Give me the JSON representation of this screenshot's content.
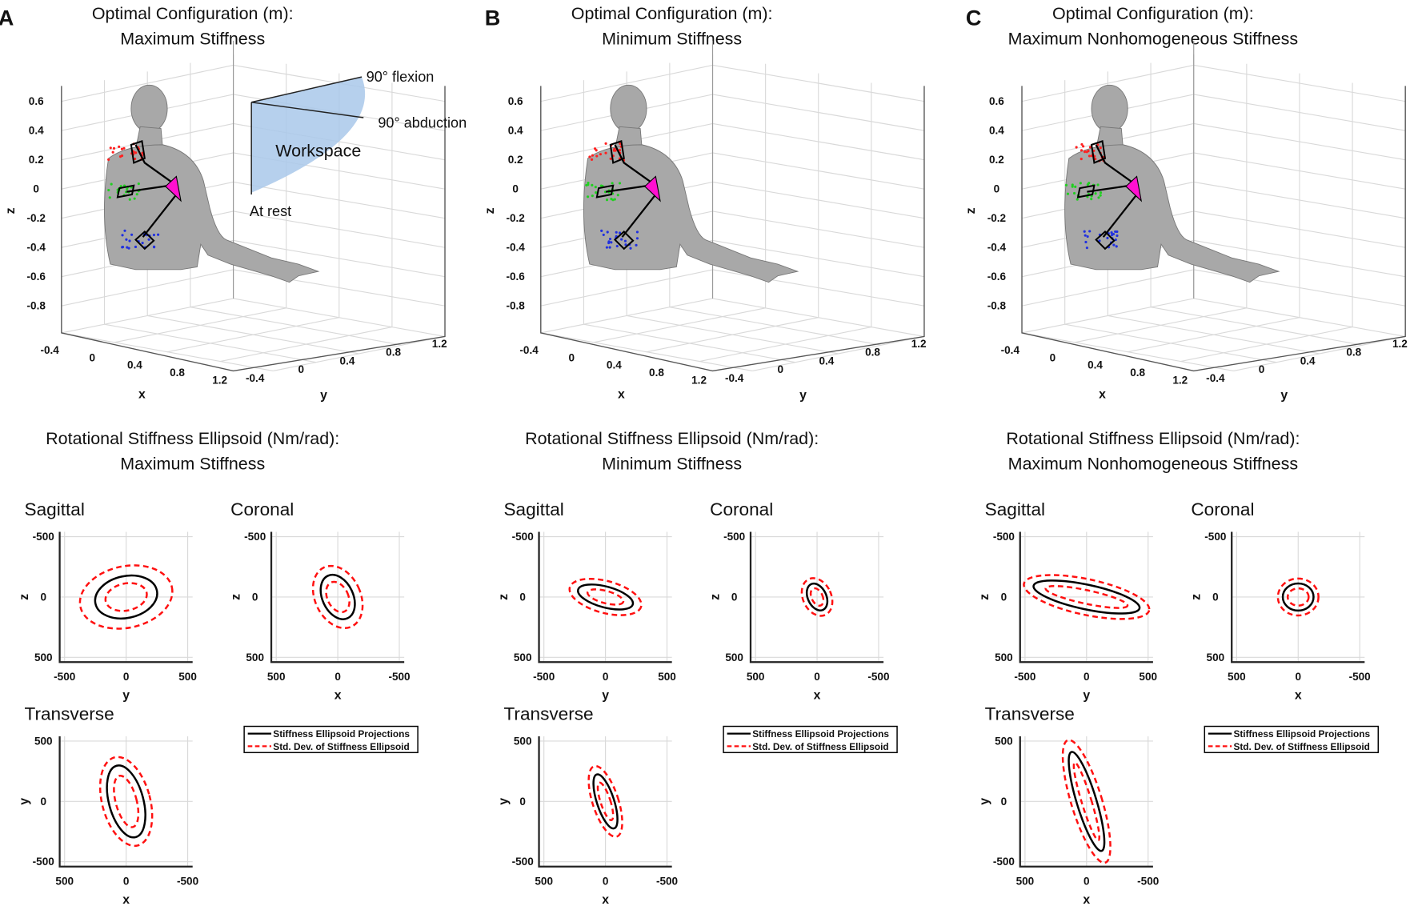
{
  "panels": [
    {
      "letter": "A",
      "top_title": [
        "Optimal Configuration (m):",
        "Maximum Stiffness"
      ],
      "bottom_title": [
        "Rotational Stiffness Ellipsoid (Nm/rad):",
        "Maximum Stiffness"
      ]
    },
    {
      "letter": "B",
      "top_title": [
        "Optimal Configuration (m):",
        "Minimum Stiffness"
      ],
      "bottom_title": [
        "Rotational Stiffness Ellipsoid (Nm/rad):",
        "Minimum Stiffness"
      ]
    },
    {
      "letter": "C",
      "top_title": [
        "Optimal Configuration (m):",
        "Maximum Nonhomogeneous Stiffness"
      ],
      "bottom_title": [
        "Rotational Stiffness Ellipsoid (Nm/rad):",
        "Maximum Nonhomogeneous Stiffness"
      ]
    }
  ],
  "axes3d": {
    "z_ticks": [
      "0.6",
      "0.4",
      "0.2",
      "0",
      "-0.2",
      "-0.4",
      "-0.6",
      "-0.8"
    ],
    "x_ticks": [
      "-0.4",
      "0",
      "0.4",
      "0.8",
      "1.2"
    ],
    "y_ticks": [
      "-0.4",
      "0",
      "0.4",
      "0.8",
      "1.2"
    ],
    "xlabel": "x",
    "ylabel": "y",
    "zlabel": "z"
  },
  "workspace": {
    "label": "Workspace",
    "flexion": "90° flexion",
    "abduction": "90° abduction",
    "rest": "At rest",
    "color": "#a9c8ea"
  },
  "marker_colors": {
    "red": "#ff2020",
    "green": "#20d020",
    "blue": "#2030e0",
    "triangle": "#ff10d0"
  },
  "legend": {
    "solid": "Stiffness Ellipsoid Projections",
    "dashed": "Std. Dev. of Stiffness Ellipsoid"
  },
  "chart_data": [
    {
      "type": "ellipse-projections",
      "panel": "A",
      "plots": [
        {
          "plane": "Sagittal",
          "xlabel": "y",
          "ylabel": "z",
          "xticks": [
            -500,
            0,
            500
          ],
          "yticks": [
            -500,
            0,
            500
          ],
          "x_reversed": false,
          "y_reversed": true,
          "solid": {
            "rx": 255,
            "ry": 170,
            "angle": -12
          },
          "dashed_outer": {
            "rx": 380,
            "ry": 250,
            "angle": -12
          },
          "dashed_inner": {
            "rx": 170,
            "ry": 110,
            "angle": -12
          }
        },
        {
          "plane": "Coronal",
          "xlabel": "x",
          "ylabel": "z",
          "xticks": [
            500,
            0,
            -500
          ],
          "yticks": [
            -500,
            0,
            500
          ],
          "x_reversed": true,
          "y_reversed": true,
          "solid": {
            "rx": 125,
            "ry": 190,
            "angle": -25
          },
          "dashed_outer": {
            "rx": 185,
            "ry": 265,
            "angle": -25
          },
          "dashed_inner": {
            "rx": 85,
            "ry": 130,
            "angle": -25
          }
        },
        {
          "plane": "Transverse",
          "xlabel": "x",
          "ylabel": "y",
          "xticks": [
            500,
            0,
            -500
          ],
          "yticks": [
            500,
            0,
            -500
          ],
          "x_reversed": true,
          "y_reversed": false,
          "solid": {
            "rx": 140,
            "ry": 300,
            "angle": -15
          },
          "dashed_outer": {
            "rx": 195,
            "ry": 370,
            "angle": -15
          },
          "dashed_inner": {
            "rx": 85,
            "ry": 215,
            "angle": -15
          }
        }
      ]
    },
    {
      "type": "ellipse-projections",
      "panel": "B",
      "plots": [
        {
          "plane": "Sagittal",
          "xlabel": "y",
          "ylabel": "z",
          "xticks": [
            -500,
            0,
            500
          ],
          "yticks": [
            -500,
            0,
            500
          ],
          "x_reversed": false,
          "y_reversed": true,
          "solid": {
            "rx": 230,
            "ry": 85,
            "angle": 15
          },
          "dashed_outer": {
            "rx": 300,
            "ry": 130,
            "angle": 15
          },
          "dashed_inner": {
            "rx": 150,
            "ry": 50,
            "angle": 15
          }
        },
        {
          "plane": "Coronal",
          "xlabel": "x",
          "ylabel": "z",
          "xticks": [
            500,
            0,
            -500
          ],
          "yticks": [
            -500,
            0,
            500
          ],
          "x_reversed": true,
          "y_reversed": true,
          "solid": {
            "rx": 75,
            "ry": 115,
            "angle": -25
          },
          "dashed_outer": {
            "rx": 115,
            "ry": 160,
            "angle": -25
          },
          "dashed_inner": {
            "rx": 45,
            "ry": 75,
            "angle": -25
          }
        },
        {
          "plane": "Transverse",
          "xlabel": "x",
          "ylabel": "y",
          "xticks": [
            500,
            0,
            -500
          ],
          "yticks": [
            500,
            0,
            -500
          ],
          "x_reversed": true,
          "y_reversed": false,
          "solid": {
            "rx": 70,
            "ry": 230,
            "angle": -18
          },
          "dashed_outer": {
            "rx": 105,
            "ry": 300,
            "angle": -18
          },
          "dashed_inner": {
            "rx": 40,
            "ry": 160,
            "angle": -18
          }
        }
      ]
    },
    {
      "type": "ellipse-projections",
      "panel": "C",
      "plots": [
        {
          "plane": "Sagittal",
          "xlabel": "y",
          "ylabel": "z",
          "xticks": [
            -500,
            0,
            500
          ],
          "yticks": [
            -500,
            0,
            500
          ],
          "x_reversed": false,
          "y_reversed": true,
          "solid": {
            "rx": 440,
            "ry": 100,
            "angle": 12
          },
          "dashed_outer": {
            "rx": 520,
            "ry": 145,
            "angle": 12
          },
          "dashed_inner": {
            "rx": 340,
            "ry": 55,
            "angle": 12
          }
        },
        {
          "plane": "Coronal",
          "xlabel": "x",
          "ylabel": "z",
          "xticks": [
            500,
            0,
            -500
          ],
          "yticks": [
            -500,
            0,
            500
          ],
          "x_reversed": true,
          "y_reversed": true,
          "solid": {
            "rx": 125,
            "ry": 110,
            "angle": 0
          },
          "dashed_outer": {
            "rx": 165,
            "ry": 150,
            "angle": 0
          },
          "dashed_inner": {
            "rx": 85,
            "ry": 70,
            "angle": 0
          }
        },
        {
          "plane": "Transverse",
          "xlabel": "x",
          "ylabel": "y",
          "xticks": [
            500,
            0,
            -500
          ],
          "yticks": [
            500,
            0,
            -500
          ],
          "x_reversed": true,
          "y_reversed": false,
          "solid": {
            "rx": 80,
            "ry": 420,
            "angle": -17
          },
          "dashed_outer": {
            "rx": 125,
            "ry": 520,
            "angle": -17
          },
          "dashed_inner": {
            "rx": 40,
            "ry": 330,
            "angle": -17
          }
        }
      ]
    }
  ]
}
